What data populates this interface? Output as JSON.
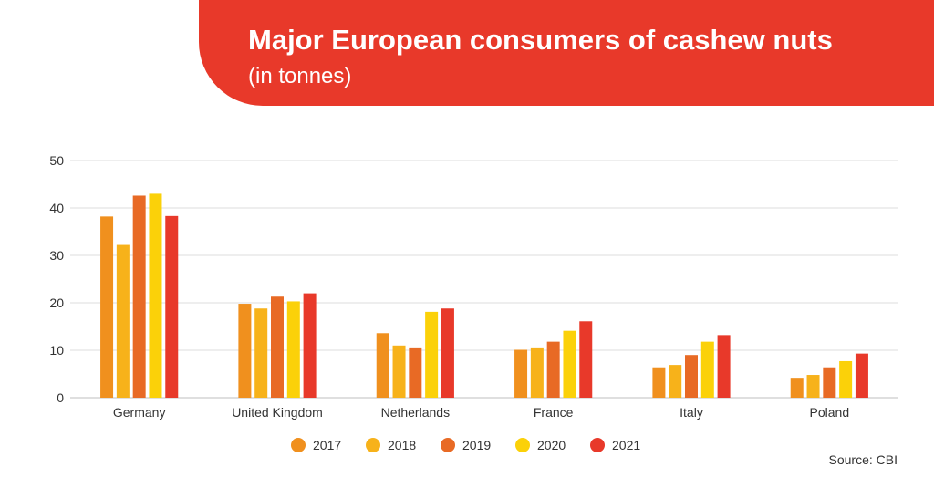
{
  "header": {
    "title": "Major European consumers of cashew nuts",
    "subtitle": "(in tonnes)"
  },
  "footer": {
    "source": "Source: CBI"
  },
  "chart_data": {
    "type": "bar",
    "title": "Major European consumers of cashew nuts",
    "subtitle": "(in tonnes)",
    "xlabel": "",
    "ylabel": "",
    "ylim": [
      0,
      50
    ],
    "yticks": [
      0,
      10,
      20,
      30,
      40,
      50
    ],
    "grid": true,
    "legend_position": "bottom",
    "categories": [
      "Germany",
      "United Kingdom",
      "Netherlands",
      "France",
      "Italy",
      "Poland"
    ],
    "series": [
      {
        "name": "2017",
        "color": "#f0901e",
        "values": [
          38.2,
          19.8,
          13.6,
          10.1,
          6.4,
          4.2
        ]
      },
      {
        "name": "2018",
        "color": "#f7b21a",
        "values": [
          32.2,
          18.8,
          11.0,
          10.6,
          6.9,
          4.8
        ]
      },
      {
        "name": "2019",
        "color": "#e86a25",
        "values": [
          42.6,
          21.3,
          10.6,
          11.8,
          9.0,
          6.4
        ]
      },
      {
        "name": "2020",
        "color": "#fbd109",
        "values": [
          43.0,
          20.3,
          18.1,
          14.1,
          11.8,
          7.7
        ]
      },
      {
        "name": "2021",
        "color": "#e8392a",
        "values": [
          38.3,
          22.0,
          18.8,
          16.1,
          13.2,
          9.3
        ]
      }
    ]
  }
}
